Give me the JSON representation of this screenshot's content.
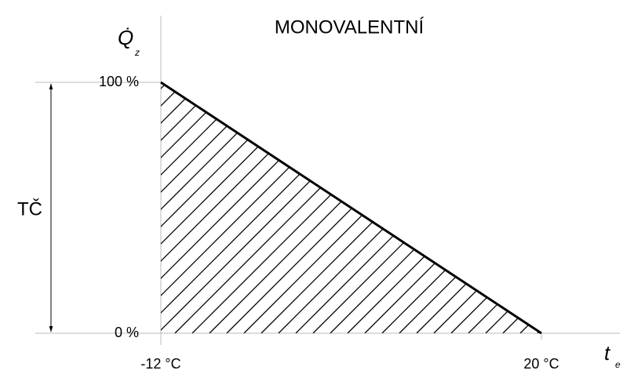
{
  "chart_data": {
    "type": "area",
    "title": "MONOVALENTNÍ",
    "x": [
      -12,
      20
    ],
    "series": [
      {
        "color": "#000000",
        "values": [
          100,
          0
        ]
      }
    ],
    "xlim": [
      -12,
      20
    ],
    "ylim": [
      0,
      100
    ],
    "xticks": [
      {
        "value": -12,
        "label": "-12 °C"
      },
      {
        "value": 20,
        "label": "20 °C"
      }
    ],
    "yticks": [
      {
        "value": 0,
        "label": "0 %"
      },
      {
        "value": 100,
        "label": "100 %"
      }
    ],
    "ylabel": {
      "main": "Q̇",
      "sub": "z"
    },
    "xlabel": {
      "main": "t",
      "sub": "e"
    },
    "annotation": "TČ",
    "hatch": true
  }
}
